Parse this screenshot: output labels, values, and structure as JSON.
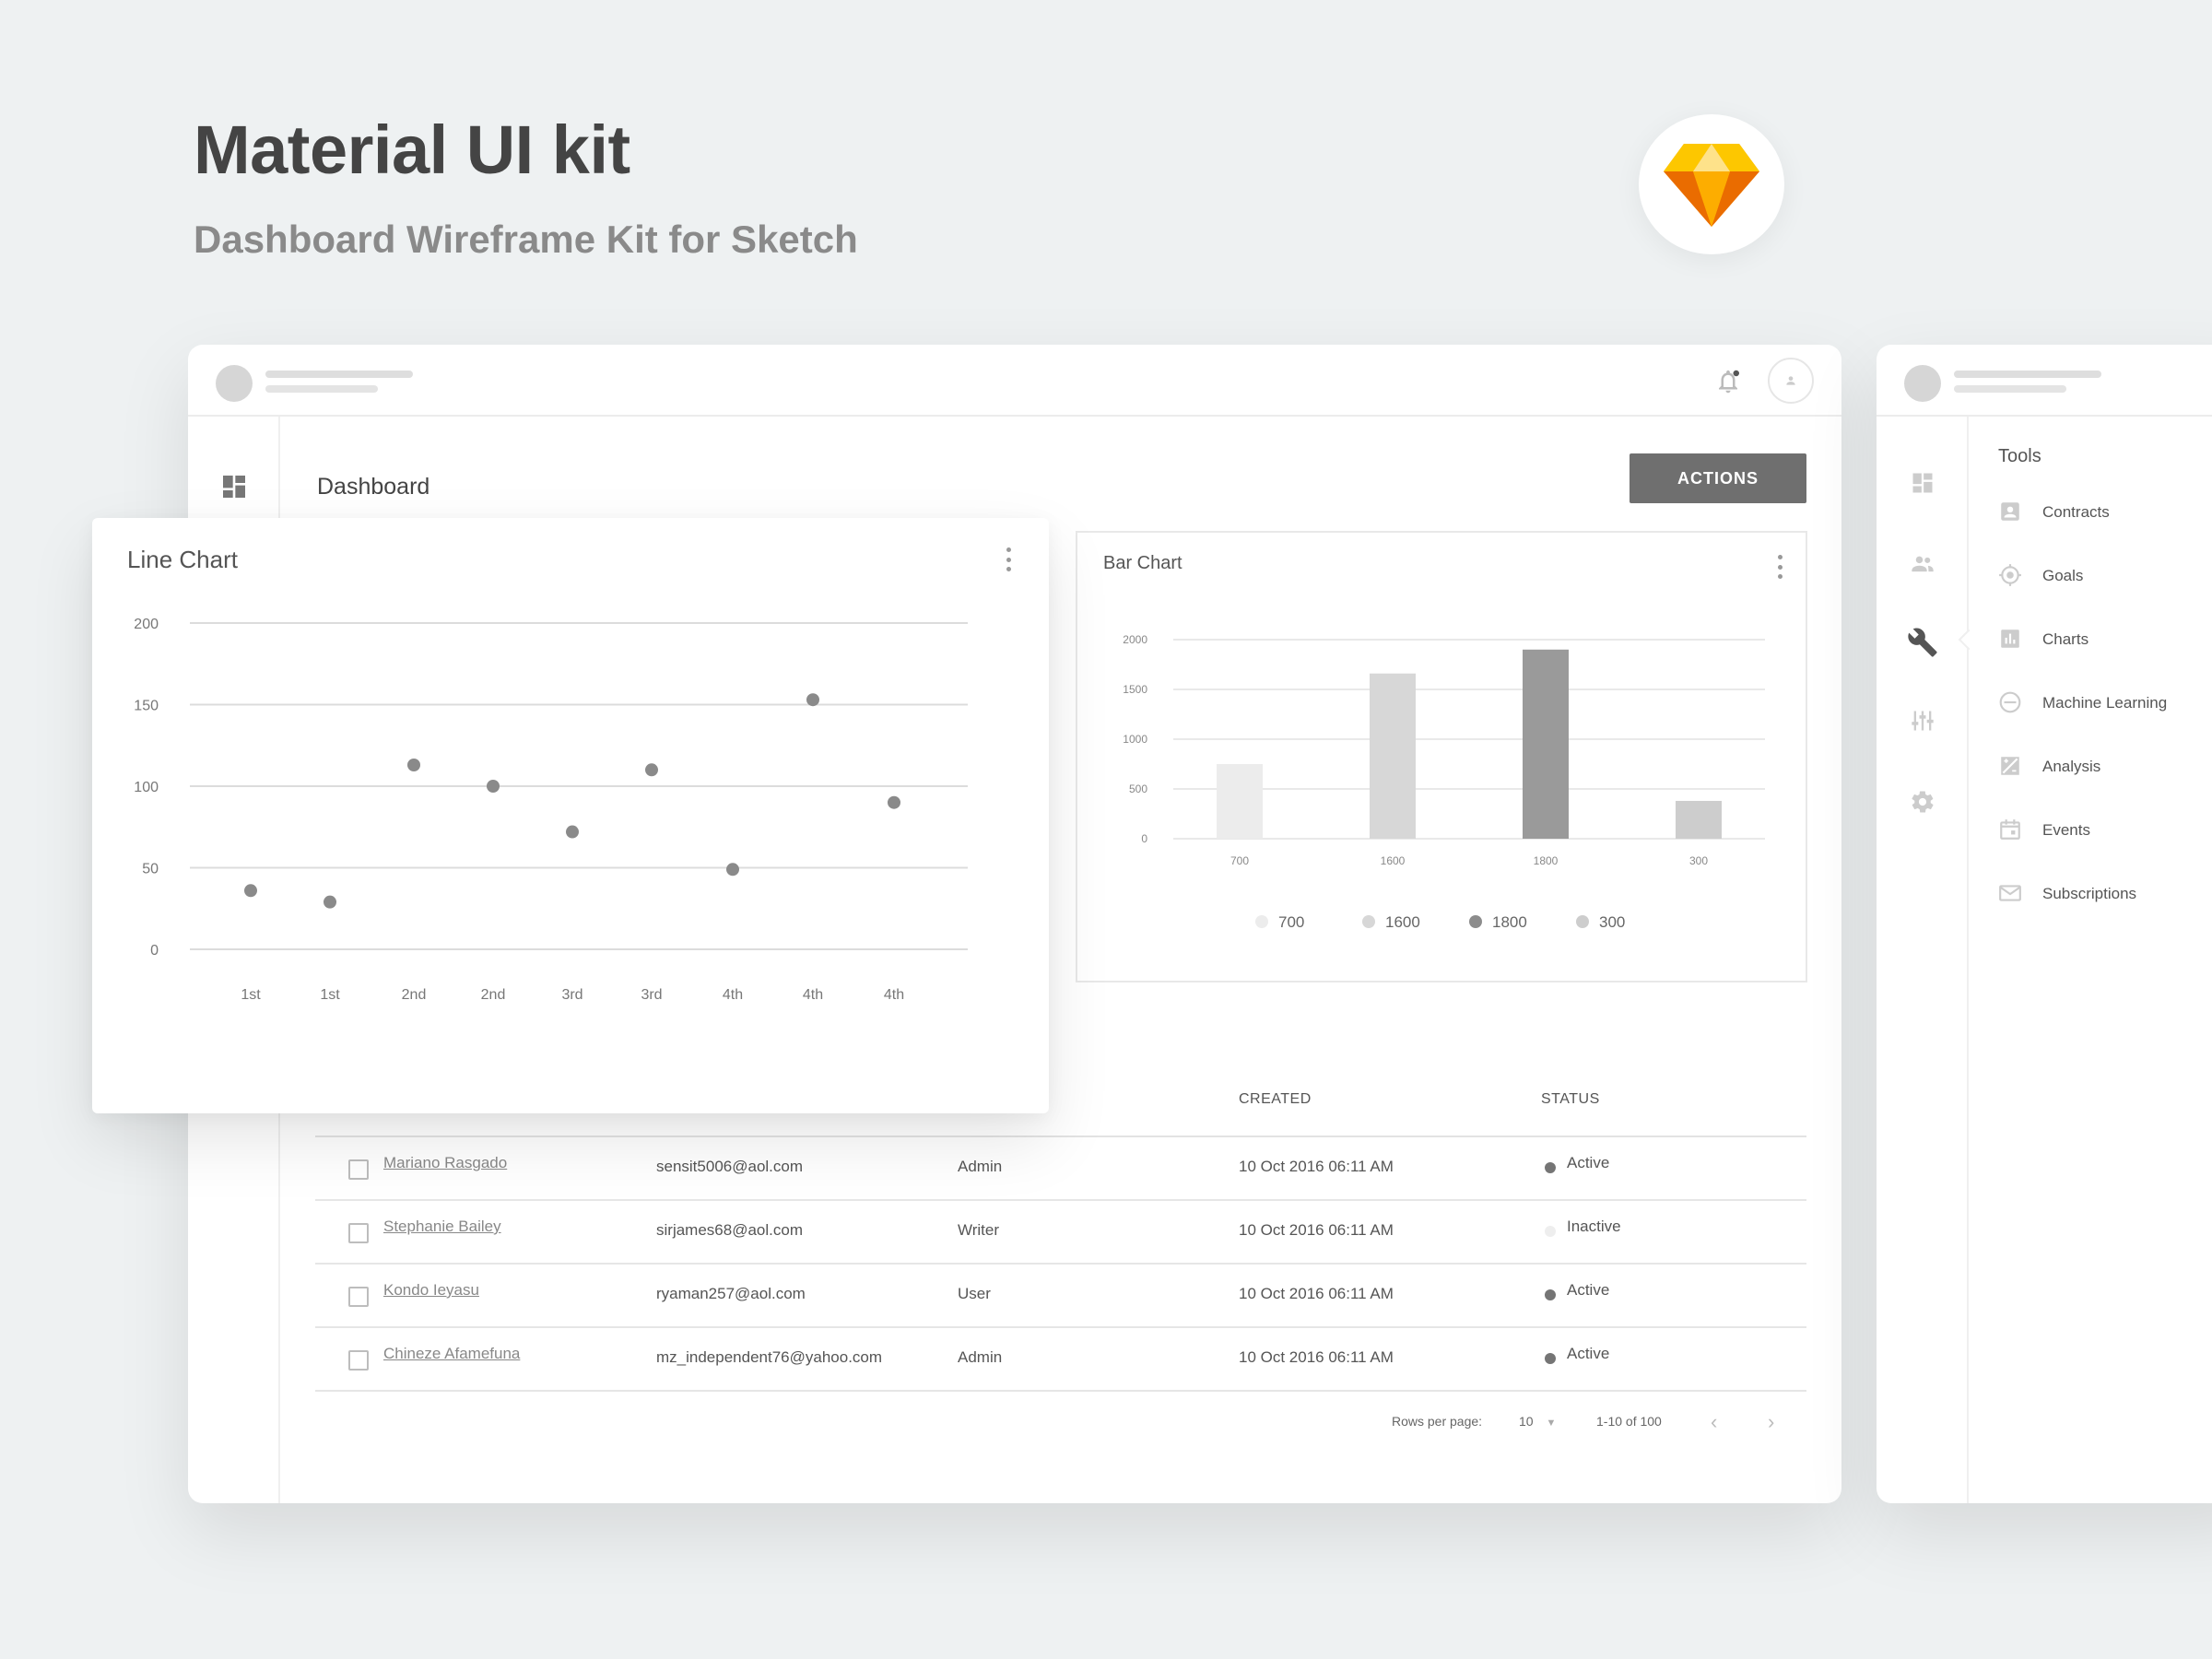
{
  "hero": {
    "title": "Material UI kit",
    "subtitle": "Dashboard Wireframe Kit for Sketch"
  },
  "dashboard": {
    "page_title": "Dashboard",
    "actions_label": "ACTIONS"
  },
  "line_chart": {
    "title": "Line Chart"
  },
  "bar_chart": {
    "title": "Bar Chart"
  },
  "chart_data": [
    {
      "type": "scatter",
      "title": "Line Chart",
      "x": [
        "1st",
        "1st",
        "2nd",
        "2nd",
        "3rd",
        "3rd",
        "4th",
        "4th",
        "4th"
      ],
      "y": [
        36,
        29,
        113,
        100,
        72,
        110,
        49,
        153,
        90
      ],
      "yticks": [
        "200",
        "150",
        "100",
        "50",
        "0"
      ],
      "ylim": [
        0,
        200
      ],
      "grid": true
    },
    {
      "type": "bar",
      "title": "Bar Chart",
      "categories": [
        "700",
        "1600",
        "1800",
        "300"
      ],
      "values": [
        750,
        1660,
        1900,
        380
      ],
      "bar_colors": [
        "#ececec",
        "#d7d7d7",
        "#9a9a9a",
        "#cdcdcd"
      ],
      "legend": [
        "700",
        "1600",
        "1800",
        "300"
      ],
      "legend_colors": [
        "#ececec",
        "#d7d7d7",
        "#8c8c8c",
        "#cdcdcd"
      ],
      "yticks": [
        "2000",
        "1500",
        "1000",
        "500",
        "0"
      ],
      "ylim": [
        0,
        2000
      ],
      "legend_position": "bottom",
      "grid": true
    }
  ],
  "table": {
    "headers": {
      "created": "CREATED",
      "status": "STATUS"
    },
    "rows": [
      {
        "name": "Mariano Rasgado",
        "email": "sensit5006@aol.com",
        "role": "Admin",
        "created": "10 Oct 2016 06:11 AM",
        "status": "Active"
      },
      {
        "name": "Stephanie Bailey",
        "email": "sirjames68@aol.com",
        "role": "Writer",
        "created": "10 Oct 2016 06:11 AM",
        "status": "Inactive"
      },
      {
        "name": "Kondo Ieyasu",
        "email": "ryaman257@aol.com",
        "role": "User",
        "created": "10 Oct 2016 06:11 AM",
        "status": "Active"
      },
      {
        "name": "Chineze Afamefuna",
        "email": "mz_independent76@yahoo.com",
        "role": "Admin",
        "created": "10 Oct 2016 06:11 AM",
        "status": "Active"
      }
    ],
    "status_colors": {
      "Active": "#757575",
      "Inactive": "#eeeeee"
    },
    "pagination": {
      "rows_label": "Rows per page:",
      "rows_value": "10",
      "range": "1-10 of 100"
    }
  },
  "tools_menu": {
    "title": "Tools",
    "items": [
      {
        "label": "Contracts",
        "icon": "contracts-icon"
      },
      {
        "label": "Goals",
        "icon": "goals-icon"
      },
      {
        "label": "Charts",
        "icon": "charts-icon"
      },
      {
        "label": "Machine Learning",
        "icon": "machine-learning-icon"
      },
      {
        "label": "Analysis",
        "icon": "analysis-icon"
      },
      {
        "label": "Events",
        "icon": "events-icon"
      },
      {
        "label": "Subscriptions",
        "icon": "subscriptions-icon"
      }
    ]
  },
  "colors": {
    "sketch_orange": "#fdad00",
    "actions_button": "#6f6f6f"
  }
}
